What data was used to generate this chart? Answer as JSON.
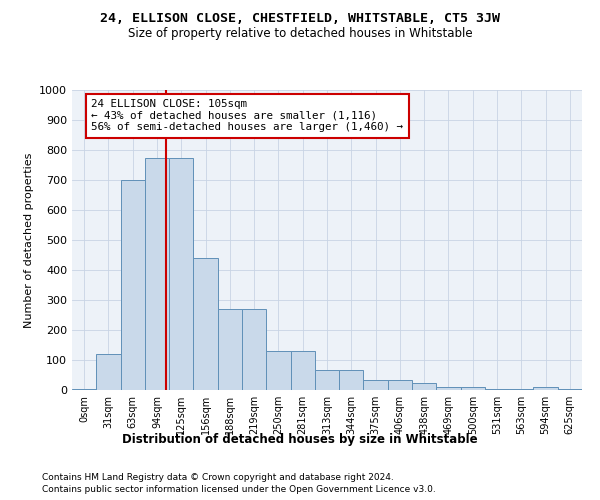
{
  "title1": "24, ELLISON CLOSE, CHESTFIELD, WHITSTABLE, CT5 3JW",
  "title2": "Size of property relative to detached houses in Whitstable",
  "xlabel": "Distribution of detached houses by size in Whitstable",
  "ylabel": "Number of detached properties",
  "bar_color": "#c9d9ea",
  "bar_edge_color": "#6090b8",
  "categories": [
    "0sqm",
    "31sqm",
    "63sqm",
    "94sqm",
    "125sqm",
    "156sqm",
    "188sqm",
    "219sqm",
    "250sqm",
    "281sqm",
    "313sqm",
    "344sqm",
    "375sqm",
    "406sqm",
    "438sqm",
    "469sqm",
    "500sqm",
    "531sqm",
    "563sqm",
    "594sqm",
    "625sqm"
  ],
  "values": [
    5,
    120,
    700,
    775,
    775,
    440,
    270,
    270,
    130,
    130,
    68,
    68,
    35,
    35,
    22,
    10,
    10,
    5,
    5,
    10,
    2
  ],
  "ylim": [
    0,
    1000
  ],
  "yticks": [
    0,
    100,
    200,
    300,
    400,
    500,
    600,
    700,
    800,
    900,
    1000
  ],
  "annotation_line1": "24 ELLISON CLOSE: 105sqm",
  "annotation_line2": "← 43% of detached houses are smaller (1,116)",
  "annotation_line3": "56% of semi-detached houses are larger (1,460) →",
  "vline_color": "#cc0000",
  "footer1": "Contains HM Land Registry data © Crown copyright and database right 2024.",
  "footer2": "Contains public sector information licensed under the Open Government Licence v3.0.",
  "grid_color": "#c8d4e4",
  "bg_color": "#edf2f8"
}
